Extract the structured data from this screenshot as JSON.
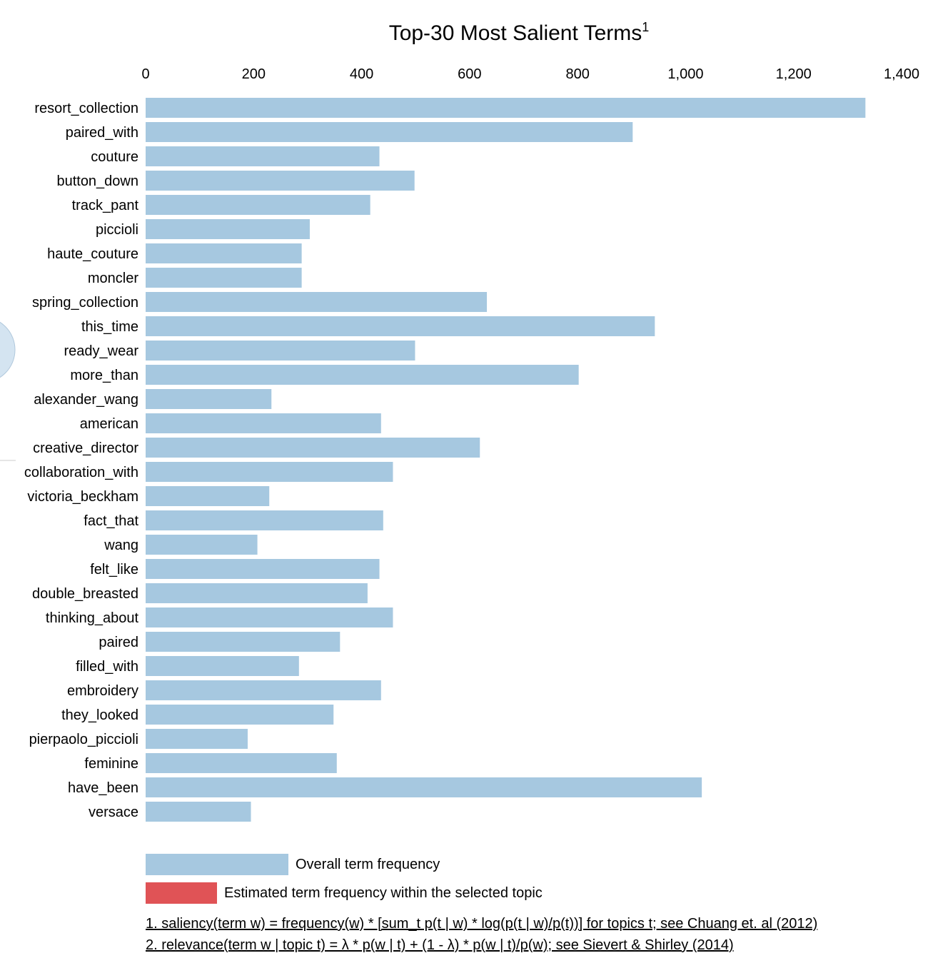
{
  "chart_data": {
    "type": "bar",
    "orientation": "horizontal",
    "title": "Top-30 Most Salient Terms",
    "title_superscript": "1",
    "xlim": [
      0,
      1400
    ],
    "xticks": [
      0,
      200,
      400,
      600,
      800,
      1000,
      1200,
      1400
    ],
    "xtick_labels": [
      "0",
      "200",
      "400",
      "600",
      "800",
      "1,000",
      "1,200",
      "1,400"
    ],
    "axis_position": "top",
    "grid": false,
    "categories": [
      "resort_collection",
      "paired_with",
      "couture",
      "button_down",
      "track_pant",
      "piccioli",
      "haute_couture",
      "moncler",
      "spring_collection",
      "this_time",
      "ready_wear",
      "more_than",
      "alexander_wang",
      "american",
      "creative_director",
      "collaboration_with",
      "victoria_beckham",
      "fact_that",
      "wang",
      "felt_like",
      "double_breasted",
      "thinking_about",
      "paired",
      "filled_with",
      "embroidery",
      "they_looked",
      "pierpaolo_piccioli",
      "feminine",
      "have_been",
      "versace"
    ],
    "series": [
      {
        "name": "Overall term frequency",
        "color": "#a6c8e0",
        "values": [
          1333,
          902,
          433,
          498,
          416,
          304,
          289,
          289,
          632,
          943,
          499,
          802,
          233,
          436,
          619,
          458,
          229,
          440,
          207,
          433,
          411,
          458,
          360,
          284,
          436,
          348,
          189,
          354,
          1030,
          195
        ]
      }
    ],
    "legend": {
      "placement": "bottom-left",
      "items": [
        {
          "label": "Overall term frequency",
          "color": "#a6c8e0"
        },
        {
          "label": "Estimated term frequency within the selected topic",
          "color": "#e05356"
        }
      ]
    }
  },
  "footnotes": {
    "saliency": "1. saliency(term w) = frequency(w) * [sum_t p(t | w) * log(p(t | w)/p(t))] for topics t; see Chuang et. al (2012)",
    "relevance": "2. relevance(term w | topic t) = λ * p(w | t) + (1 - λ) * p(w | t)/p(w); see Sievert & Shirley (2014)"
  }
}
